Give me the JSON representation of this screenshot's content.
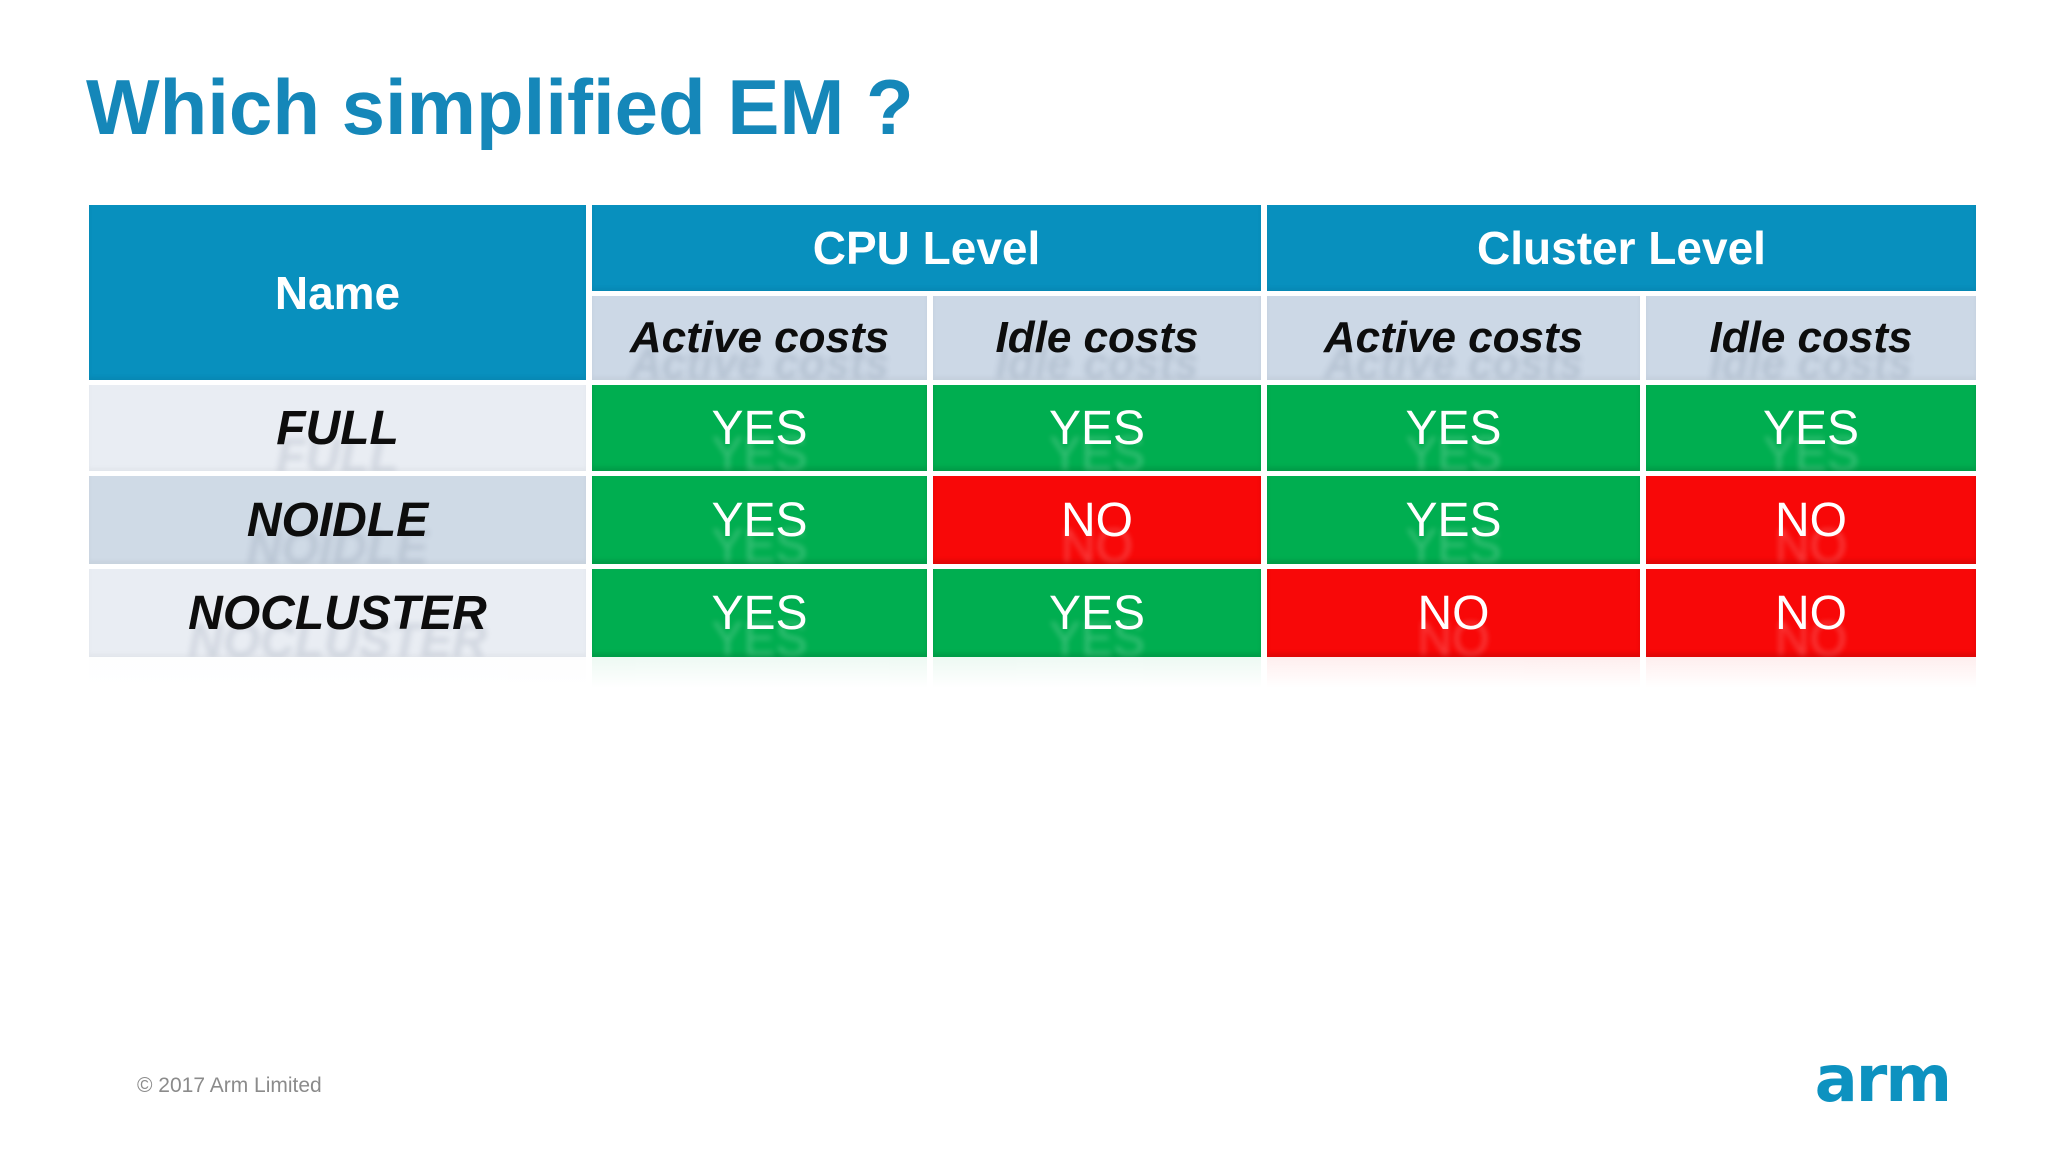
{
  "slide": {
    "title": "Which simplified EM ?",
    "footer_copyright": "© 2017 Arm Limited",
    "logo_text": "arm"
  },
  "table": {
    "corner_header": "Name",
    "group_headers": [
      {
        "label": "CPU Level"
      },
      {
        "label": "Cluster Level"
      }
    ],
    "sub_headers": [
      "Active costs",
      "Idle costs",
      "Active costs",
      "Idle costs"
    ],
    "rows": [
      {
        "name": "FULL",
        "values": [
          "YES",
          "YES",
          "YES",
          "YES"
        ]
      },
      {
        "name": "NOIDLE",
        "values": [
          "YES",
          "NO",
          "YES",
          "NO"
        ]
      },
      {
        "name": "NOCLUSTER",
        "values": [
          "YES",
          "YES",
          "NO",
          "NO"
        ]
      }
    ]
  },
  "colors": {
    "header_blue": "#0890be",
    "subheader_bg": "#ccd8e6",
    "row_band_light": "#e9edf3",
    "row_band_mid": "#cfdae6",
    "yes_green": "#00ae50",
    "no_red": "#f80808",
    "title_blue": "#1587b9",
    "logo_blue": "#0d92c0",
    "footer_gray": "#8b8b8b"
  }
}
